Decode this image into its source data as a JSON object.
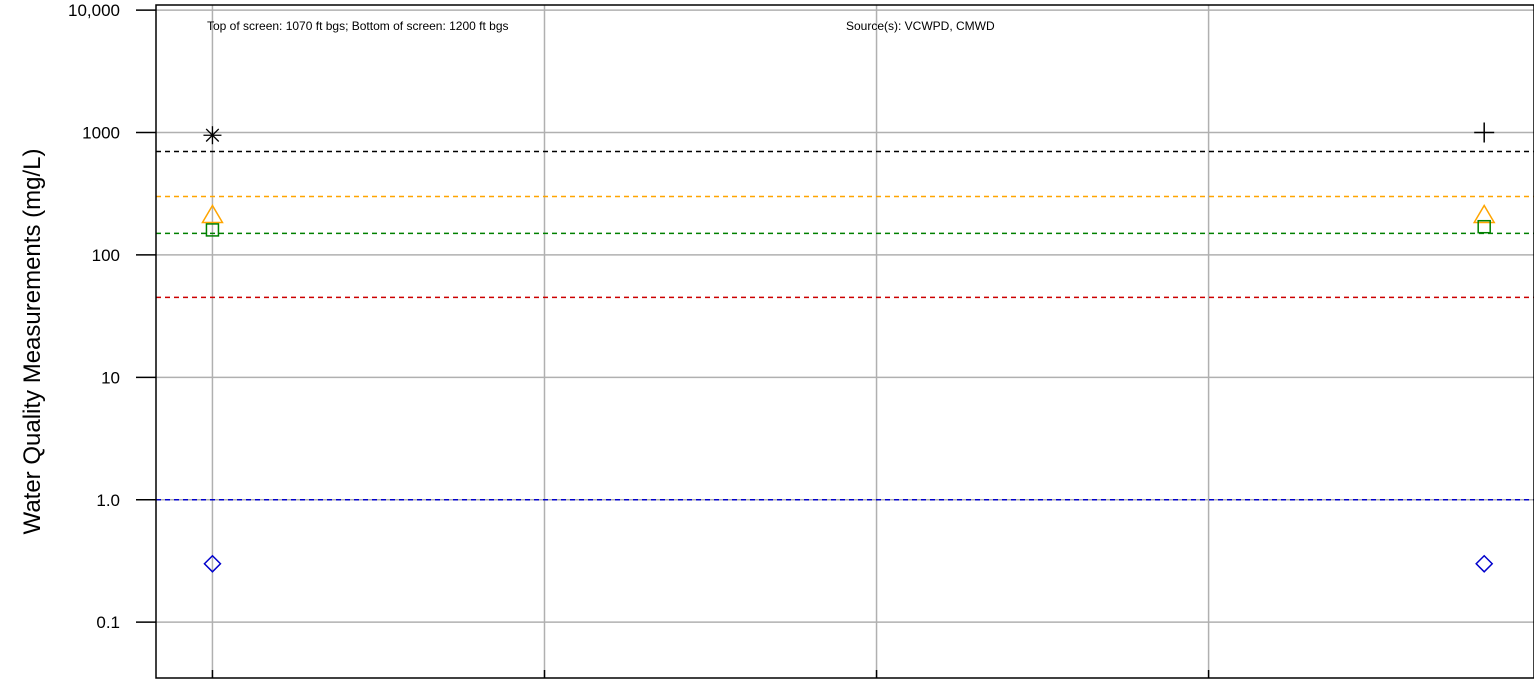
{
  "chart_data": {
    "type": "scatter",
    "title": "",
    "xlabel": "",
    "ylabel": "Water Quality Measurements (mg/L)",
    "yscale": "log",
    "ylim": [
      0.035,
      11000
    ],
    "xlim": [
      0,
      4.15
    ],
    "grid": true,
    "annotations": {
      "screen": "Top of screen: 1070 ft bgs; Bottom of screen: 1200 ft bgs",
      "source": "Source(s): VCWPD, CMWD"
    },
    "y_ticks": [
      {
        "value": 10000,
        "label": "10,000"
      },
      {
        "value": 1000,
        "label": "1000"
      },
      {
        "value": 100,
        "label": "100"
      },
      {
        "value": 10,
        "label": "10"
      },
      {
        "value": 1,
        "label": "1.0"
      },
      {
        "value": 0.1,
        "label": "0.1"
      }
    ],
    "x_grid": [
      0.17,
      1.17,
      2.17,
      3.17
    ],
    "thresholds": [
      {
        "value": 700,
        "color": "#000000"
      },
      {
        "value": 300,
        "color": "#FFA500"
      },
      {
        "value": 150,
        "color": "#008000"
      },
      {
        "value": 45,
        "color": "#CC0000"
      },
      {
        "value": 1,
        "color": "#0000CC"
      }
    ],
    "series": [
      {
        "marker": "asterisk",
        "color": "#000000",
        "points": [
          {
            "x": 0.17,
            "y": 950
          }
        ]
      },
      {
        "marker": "plus",
        "color": "#000000",
        "points": [
          {
            "x": 4.0,
            "y": 1000
          }
        ]
      },
      {
        "marker": "triangle",
        "color": "#FFA500",
        "points": [
          {
            "x": 0.17,
            "y": 210
          },
          {
            "x": 4.0,
            "y": 210
          }
        ]
      },
      {
        "marker": "square",
        "color": "#008000",
        "points": [
          {
            "x": 0.17,
            "y": 160
          },
          {
            "x": 4.0,
            "y": 170
          }
        ]
      },
      {
        "marker": "diamond",
        "color": "#0000CC",
        "points": [
          {
            "x": 0.17,
            "y": 0.3
          },
          {
            "x": 4.0,
            "y": 0.3
          }
        ]
      }
    ]
  }
}
